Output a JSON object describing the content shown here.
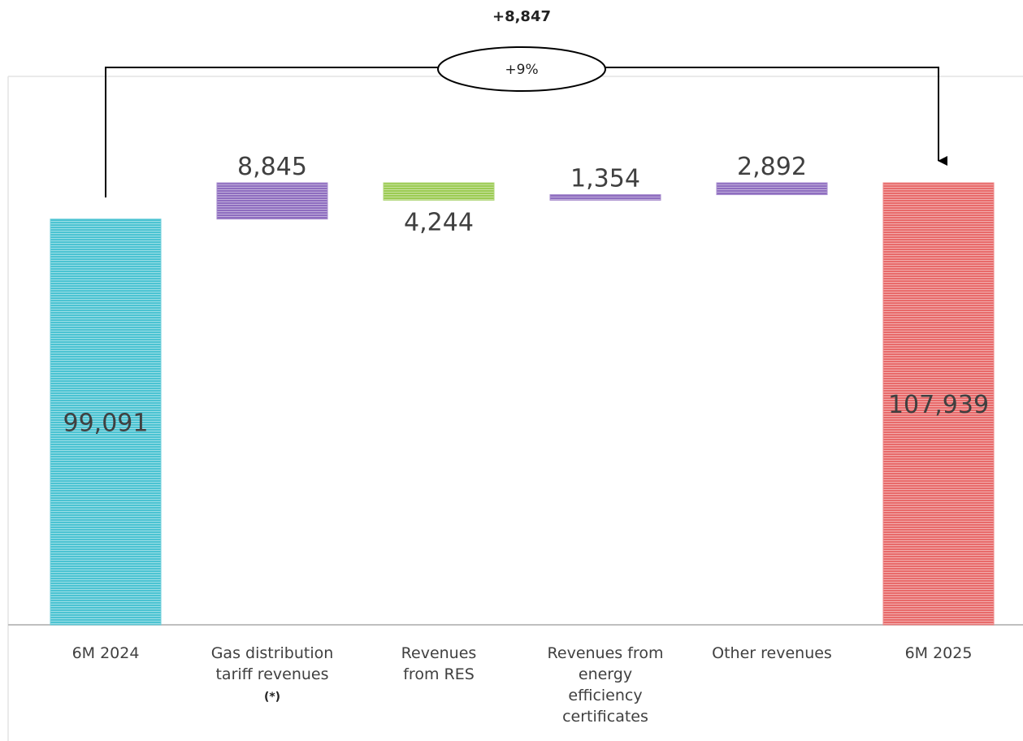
{
  "chart_data": {
    "type": "bar",
    "subtype": "waterfall",
    "title": "",
    "xlabel": "",
    "ylabel": "",
    "categories": [
      "6M 2024",
      "Gas distribution tariff revenues",
      "Revenues from RES",
      "Revenues from energy efficiency certificates",
      "Other revenues",
      "6M 2025"
    ],
    "category_lines": [
      [
        "6M 2024"
      ],
      [
        "Gas distribution",
        "tariff revenues"
      ],
      [
        "Revenues",
        "from RES"
      ],
      [
        "Revenues from",
        "energy",
        "efficiency",
        "certificates"
      ],
      [
        "Other revenues"
      ],
      [
        "6M 2025"
      ]
    ],
    "category_note": {
      "category_index": 1,
      "text": "(*)"
    },
    "bars": [
      {
        "kind": "total",
        "value": 99091,
        "label": "99,091",
        "color": "#4BC3D2"
      },
      {
        "kind": "increase",
        "value": 8845,
        "label": "8,845",
        "color": "#8E6DBF"
      },
      {
        "kind": "decrease",
        "value": -4244,
        "label": "4,244",
        "color": "#9BCB52"
      },
      {
        "kind": "increase",
        "value": 1354,
        "label": "1,354",
        "color": "#8E6DBF"
      },
      {
        "kind": "increase",
        "value": 2892,
        "label": "2,892",
        "color": "#8E6DBF"
      },
      {
        "kind": "total",
        "value": 107939,
        "label": "107,939",
        "color": "#E86A6A"
      }
    ],
    "change_annotation": {
      "absolute": "+8,847",
      "percent": "+9%"
    },
    "axis_color": "#BFBFBF"
  }
}
